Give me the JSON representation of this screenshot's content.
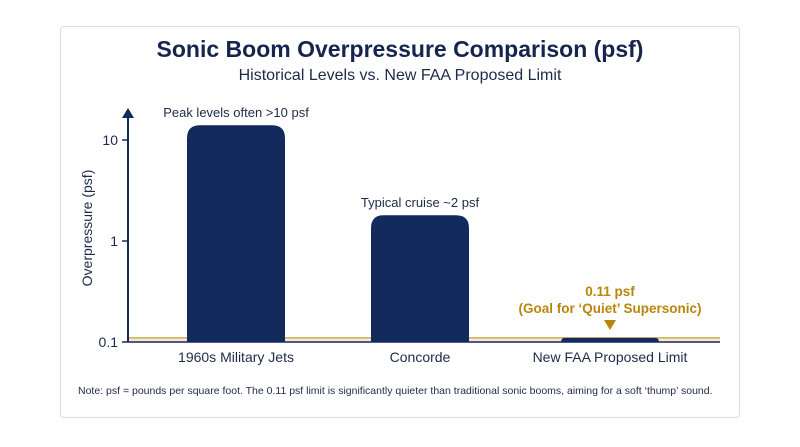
{
  "chart_data": {
    "type": "bar",
    "title": "Sonic Boom Overpressure Comparison (psf)",
    "subtitle": "Historical Levels vs. New FAA Proposed Limit",
    "ylabel": "Overpressure (psf)",
    "xlabel": "",
    "y_scale": "log",
    "ylim": [
      0.1,
      30
    ],
    "y_ticks": [
      {
        "value": 0.1,
        "label": "0.1"
      },
      {
        "value": 1,
        "label": "1"
      },
      {
        "value": 10,
        "label": "10"
      }
    ],
    "categories": [
      "1960s Military Jets",
      "Concorde",
      "New FAA Proposed Limit"
    ],
    "values": [
      14,
      1.8,
      0.11
    ],
    "bar_annotations": [
      "Peak levels often >10 psf",
      "Typical cruise ~2 psf",
      ""
    ],
    "limit_line": {
      "value": 0.11,
      "label_line1": "0.11 psf",
      "label_line2": "(Goal for ‘Quiet’ Supersonic)"
    },
    "grid": false,
    "legend": "none",
    "colors": {
      "bar": "#132a5c",
      "limit": "#b8860b",
      "limit_band": "#f5e9d3",
      "axis": "#132a5c",
      "text": "#1e2a48"
    }
  },
  "note": "Note: psf = pounds per square foot. The 0.11 psf limit is significantly quieter than traditional sonic booms, aiming for a soft ‘thump’ sound."
}
